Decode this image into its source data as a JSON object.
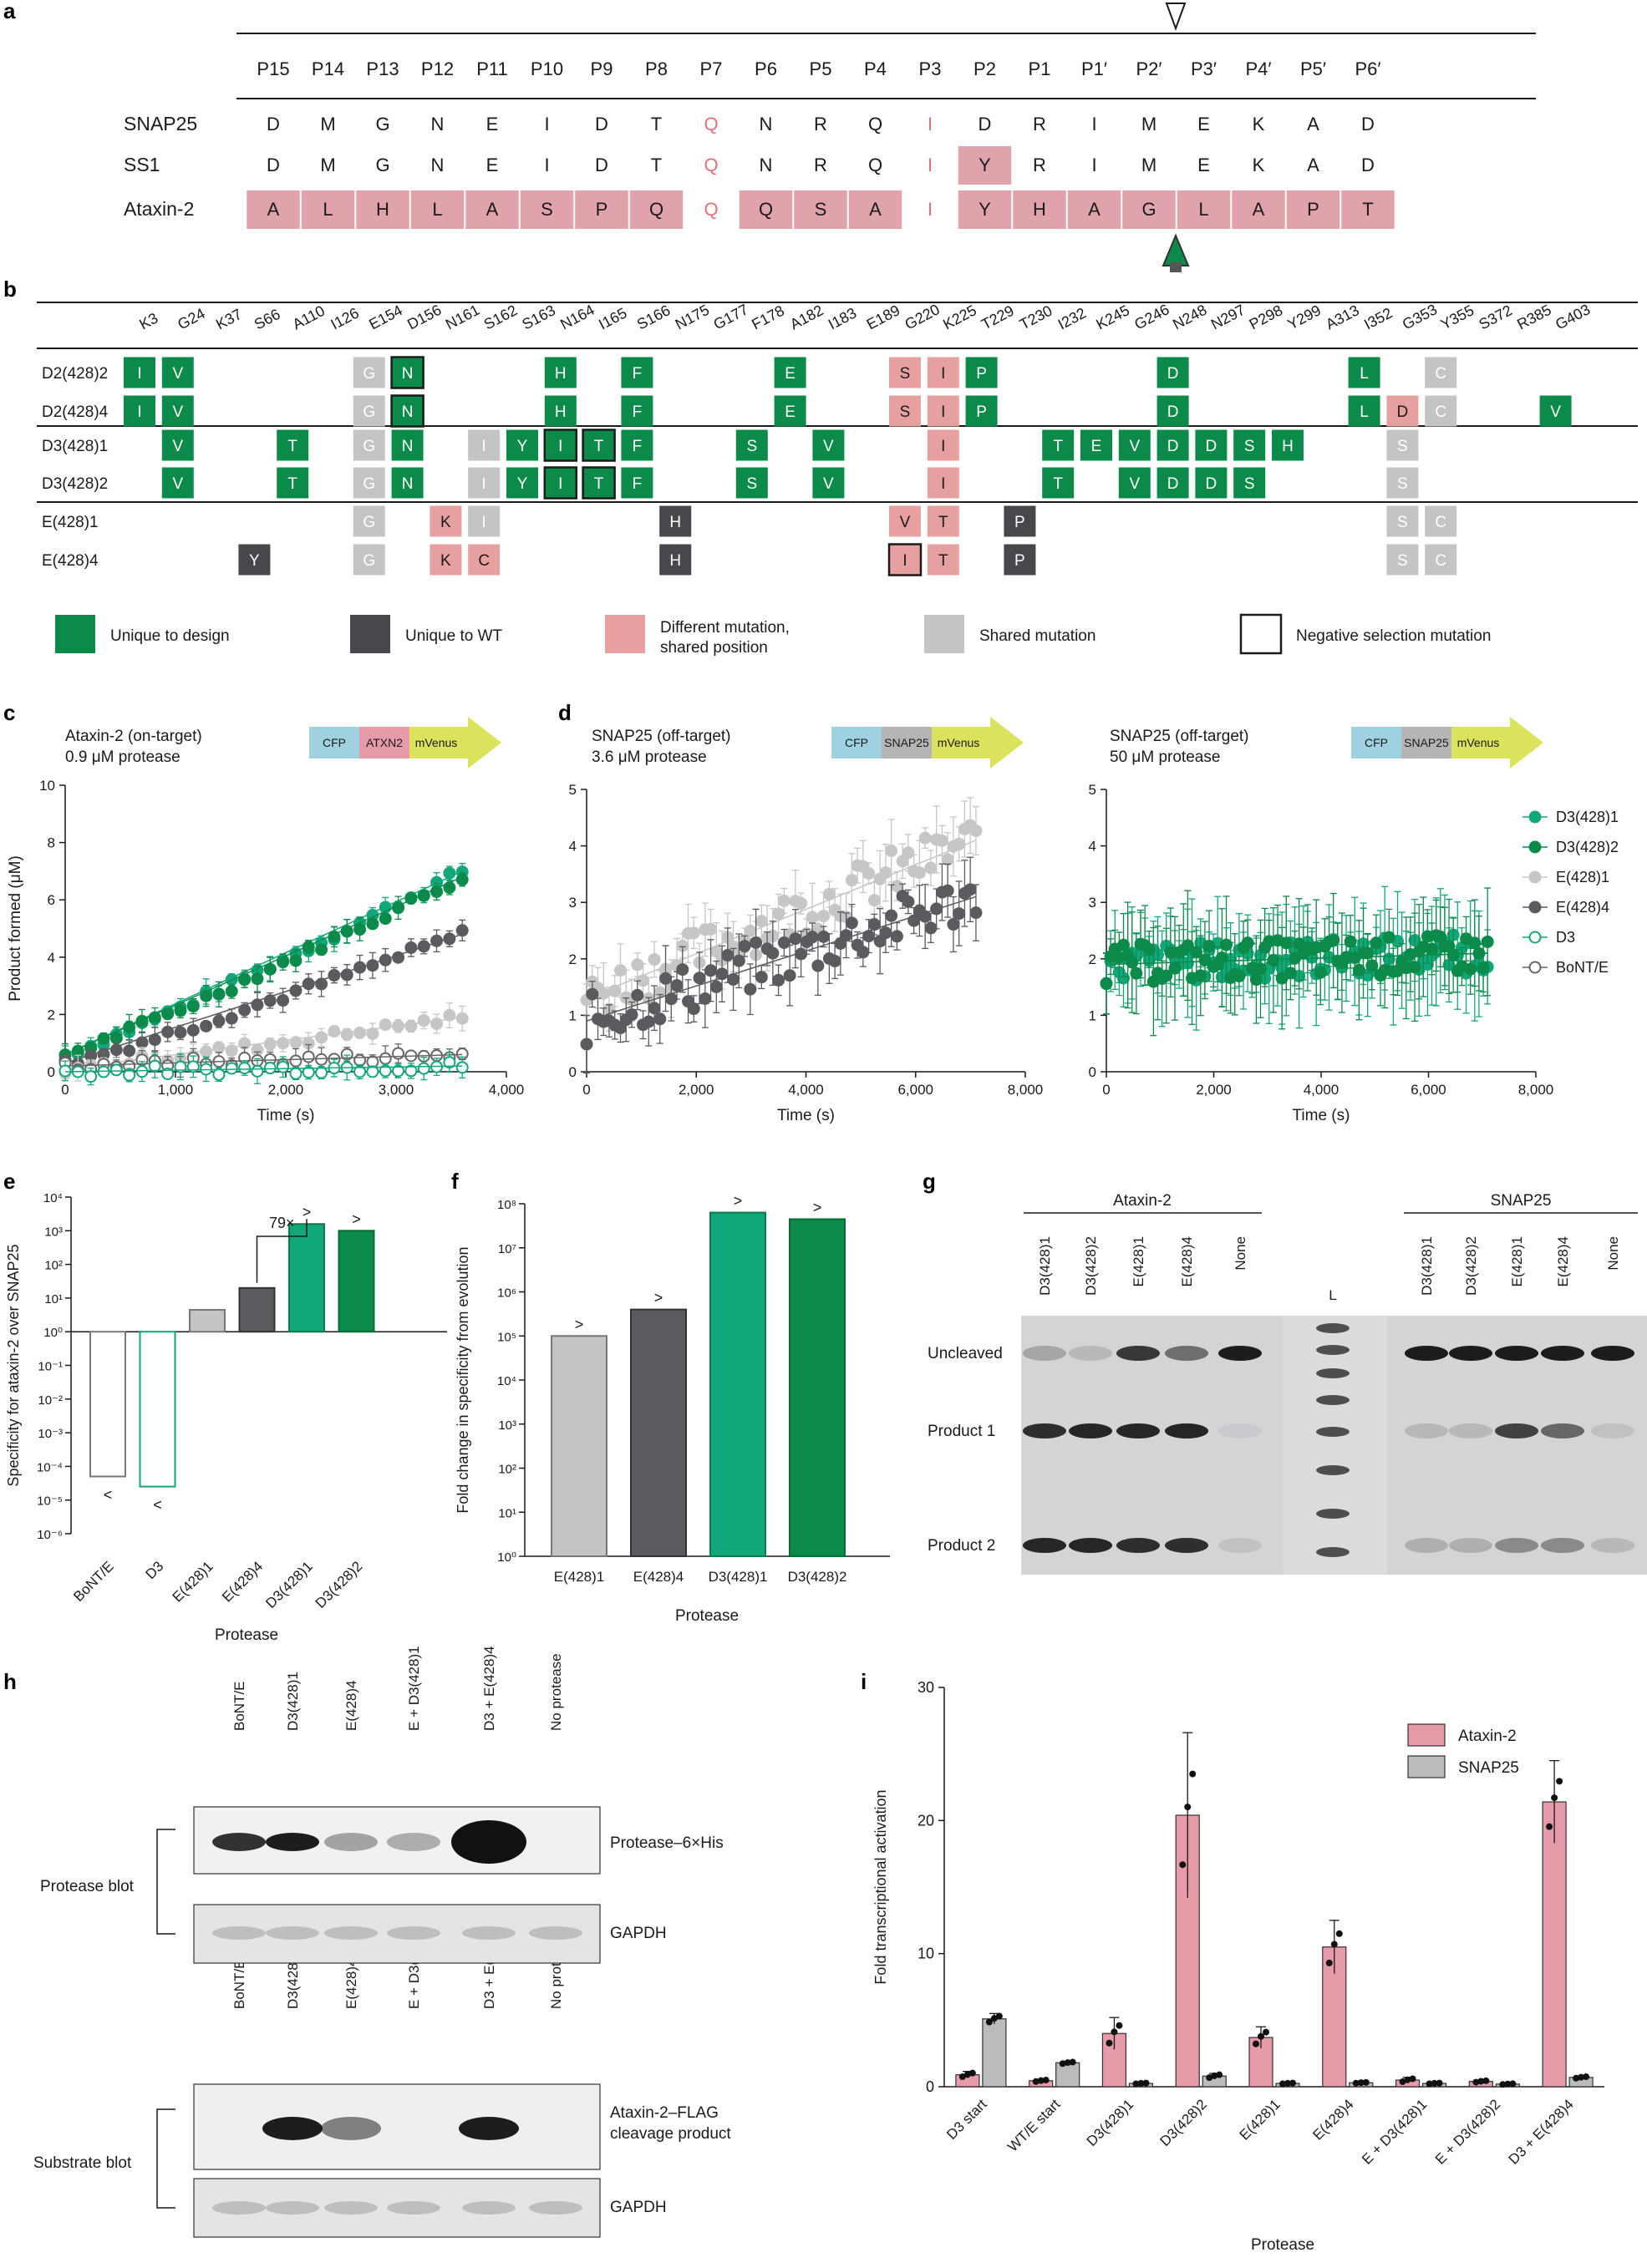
{
  "panels": {
    "a": "a",
    "b": "b",
    "c": "c",
    "d": "d",
    "e": "e",
    "f": "f",
    "g": "g",
    "h": "h",
    "i": "i"
  },
  "panel_a": {
    "positions": [
      "P15",
      "P14",
      "P13",
      "P12",
      "P11",
      "P10",
      "P9",
      "P8",
      "P7",
      "P6",
      "P5",
      "P4",
      "P3",
      "P2",
      "P1",
      "P1′",
      "P2′",
      "P3′",
      "P4′",
      "P5′",
      "P6′"
    ],
    "rows": [
      {
        "name": "SNAP25",
        "residues": [
          "D",
          "M",
          "G",
          "N",
          "E",
          "I",
          "D",
          "T",
          "Q",
          "N",
          "R",
          "Q",
          "I",
          "D",
          "R",
          "I",
          "M",
          "E",
          "K",
          "A",
          "D"
        ],
        "shaded": [
          0,
          0,
          0,
          0,
          0,
          0,
          0,
          0,
          0,
          0,
          0,
          0,
          0,
          0,
          0,
          0,
          0,
          0,
          0,
          0,
          0
        ]
      },
      {
        "name": "SS1",
        "residues": [
          "D",
          "M",
          "G",
          "N",
          "E",
          "I",
          "D",
          "T",
          "Q",
          "N",
          "R",
          "Q",
          "I",
          "Y",
          "R",
          "I",
          "M",
          "E",
          "K",
          "A",
          "D"
        ],
        "shaded": [
          0,
          0,
          0,
          0,
          0,
          0,
          0,
          0,
          0,
          0,
          0,
          0,
          0,
          1,
          0,
          0,
          0,
          0,
          0,
          0,
          0
        ]
      },
      {
        "name": "Ataxin-2",
        "residues": [
          "A",
          "L",
          "H",
          "L",
          "A",
          "S",
          "P",
          "Q",
          "Q",
          "Q",
          "S",
          "A",
          "I",
          "Y",
          "H",
          "A",
          "G",
          "L",
          "A",
          "P",
          "T"
        ],
        "shaded": [
          1,
          1,
          1,
          1,
          1,
          1,
          1,
          1,
          0,
          1,
          1,
          1,
          0,
          1,
          1,
          1,
          1,
          1,
          1,
          1,
          1
        ]
      }
    ],
    "red_text_cols": [
      8,
      12
    ]
  },
  "panel_b": {
    "positions": [
      "K3",
      "G24",
      "K37",
      "S66",
      "A110",
      "I126",
      "E154",
      "D156",
      "N161",
      "S162",
      "S163",
      "N164",
      "I165",
      "S166",
      "N175",
      "G177",
      "F178",
      "A182",
      "I183",
      "E189",
      "G220",
      "K225",
      "T229",
      "T230",
      "I232",
      "K245",
      "G246",
      "N248",
      "N297",
      "P298",
      "Y299",
      "A313",
      "I352",
      "G353",
      "Y355",
      "S372",
      "R385",
      "G403"
    ],
    "rows": [
      {
        "name": "D2(428)2",
        "group": 0,
        "cells": [
          [
            0,
            "I",
            "g"
          ],
          [
            1,
            "V",
            "g"
          ],
          [
            6,
            "G",
            "s"
          ],
          [
            7,
            "N",
            "gb"
          ],
          [
            11,
            "H",
            "g"
          ],
          [
            13,
            "F",
            "g"
          ],
          [
            17,
            "E",
            "g"
          ],
          [
            20,
            "S",
            "p"
          ],
          [
            21,
            "I",
            "p"
          ],
          [
            22,
            "P",
            "g"
          ],
          [
            27,
            "D",
            "g"
          ],
          [
            32,
            "L",
            "g"
          ],
          [
            34,
            "C",
            "s"
          ]
        ]
      },
      {
        "name": "D2(428)4",
        "group": 0,
        "cells": [
          [
            0,
            "I",
            "g"
          ],
          [
            1,
            "V",
            "g"
          ],
          [
            6,
            "G",
            "s"
          ],
          [
            7,
            "N",
            "gb"
          ],
          [
            11,
            "H",
            "g"
          ],
          [
            13,
            "F",
            "g"
          ],
          [
            17,
            "E",
            "g"
          ],
          [
            20,
            "S",
            "p"
          ],
          [
            21,
            "I",
            "p"
          ],
          [
            22,
            "P",
            "g"
          ],
          [
            27,
            "D",
            "g"
          ],
          [
            32,
            "L",
            "g"
          ],
          [
            33,
            "D",
            "p"
          ],
          [
            34,
            "C",
            "s"
          ],
          [
            37,
            "V",
            "g"
          ]
        ]
      },
      {
        "name": "D3(428)1",
        "group": 1,
        "cells": [
          [
            1,
            "V",
            "g"
          ],
          [
            4,
            "T",
            "g"
          ],
          [
            6,
            "G",
            "s"
          ],
          [
            7,
            "N",
            "g"
          ],
          [
            9,
            "I",
            "s"
          ],
          [
            10,
            "Y",
            "g"
          ],
          [
            11,
            "I",
            "gb"
          ],
          [
            12,
            "T",
            "gb"
          ],
          [
            13,
            "F",
            "g"
          ],
          [
            16,
            "S",
            "g"
          ],
          [
            18,
            "V",
            "g"
          ],
          [
            21,
            "I",
            "p"
          ],
          [
            24,
            "T",
            "g"
          ],
          [
            25,
            "E",
            "g"
          ],
          [
            26,
            "V",
            "g"
          ],
          [
            27,
            "D",
            "g"
          ],
          [
            28,
            "D",
            "g"
          ],
          [
            29,
            "S",
            "g"
          ],
          [
            30,
            "H",
            "g"
          ],
          [
            33,
            "S",
            "s"
          ]
        ]
      },
      {
        "name": "D3(428)2",
        "group": 1,
        "cells": [
          [
            1,
            "V",
            "g"
          ],
          [
            4,
            "T",
            "g"
          ],
          [
            6,
            "G",
            "s"
          ],
          [
            7,
            "N",
            "g"
          ],
          [
            9,
            "I",
            "s"
          ],
          [
            10,
            "Y",
            "g"
          ],
          [
            11,
            "I",
            "gb"
          ],
          [
            12,
            "T",
            "gb"
          ],
          [
            13,
            "F",
            "g"
          ],
          [
            16,
            "S",
            "g"
          ],
          [
            18,
            "V",
            "g"
          ],
          [
            21,
            "I",
            "p"
          ],
          [
            24,
            "T",
            "g"
          ],
          [
            26,
            "V",
            "g"
          ],
          [
            27,
            "D",
            "g"
          ],
          [
            28,
            "D",
            "g"
          ],
          [
            29,
            "S",
            "g"
          ],
          [
            33,
            "S",
            "s"
          ]
        ]
      },
      {
        "name": "E(428)1",
        "group": 2,
        "cells": [
          [
            6,
            "G",
            "s"
          ],
          [
            8,
            "K",
            "p"
          ],
          [
            9,
            "I",
            "s"
          ],
          [
            14,
            "H",
            "d"
          ],
          [
            20,
            "V",
            "p"
          ],
          [
            21,
            "T",
            "p"
          ],
          [
            23,
            "P",
            "d"
          ],
          [
            33,
            "S",
            "s"
          ],
          [
            34,
            "C",
            "s"
          ]
        ]
      },
      {
        "name": "E(428)4",
        "group": 2,
        "cells": [
          [
            3,
            "Y",
            "d"
          ],
          [
            6,
            "G",
            "s"
          ],
          [
            8,
            "K",
            "p"
          ],
          [
            9,
            "C",
            "p"
          ],
          [
            14,
            "H",
            "d"
          ],
          [
            20,
            "I",
            "pb"
          ],
          [
            21,
            "T",
            "p"
          ],
          [
            23,
            "P",
            "d"
          ],
          [
            33,
            "S",
            "s"
          ],
          [
            34,
            "C",
            "s"
          ]
        ]
      }
    ],
    "legend": [
      {
        "key": "g",
        "label": "Unique to design"
      },
      {
        "key": "d",
        "label": "Unique to WT"
      },
      {
        "key": "p",
        "label": "Different mutation,",
        "label2": "shared position"
      },
      {
        "key": "s",
        "label": "Shared mutation"
      },
      {
        "key": "b",
        "label": "Negative selection mutation"
      }
    ]
  },
  "colors": {
    "green": "#0c8a4a",
    "green_light": "#12a77a",
    "dark": "#47484b",
    "pink": "#e6a0a0",
    "gray": "#c3c4c4",
    "shade": "#e0a3ab",
    "cfp": "#9fd2e0",
    "atxn2": "#e79aa8",
    "snap": "#b5b5b5",
    "mvenus": "#dbe25b",
    "lightgray_series": "#c6c6c6",
    "midgray": "#5a5b5e"
  },
  "panel_c": {
    "subtitle1": "Ataxin-2 (on-target)",
    "subtitle2": "0.9 μM protease",
    "construct": [
      "CFP",
      "ATXN2",
      "mVenus"
    ],
    "ylabel": "Product formed (μM)",
    "xlabel": "Time (s)",
    "yticks": [
      "0",
      "2",
      "4",
      "6",
      "8",
      "10"
    ],
    "xticks": [
      "0",
      "1,000",
      "2,000",
      "3,000",
      "4,000"
    ]
  },
  "panel_d": {
    "left": {
      "subtitle1": "SNAP25 (off-target)",
      "subtitle2": "3.6 μM protease",
      "construct": [
        "CFP",
        "SNAP25",
        "mVenus"
      ]
    },
    "right": {
      "subtitle1": "SNAP25 (off-target)",
      "subtitle2": " 50 μM protease",
      "construct": [
        "CFP",
        "SNAP25",
        "mVenus"
      ]
    },
    "xlabel": "Time (s)",
    "yticks": [
      "0",
      "1",
      "2",
      "3",
      "4",
      "5"
    ],
    "xticks": [
      "0",
      "2,000",
      "4,000",
      "6,000",
      "8,000"
    ],
    "legend": [
      {
        "name": "D3(428)1",
        "style": "fill",
        "color": "#12a77a"
      },
      {
        "name": "D3(428)2",
        "style": "fill",
        "color": "#0c8a4a"
      },
      {
        "name": "E(428)1",
        "style": "fill",
        "color": "#c6c6c6"
      },
      {
        "name": "E(428)4",
        "style": "fill",
        "color": "#5a5b5e"
      },
      {
        "name": "D3",
        "style": "open",
        "color": "#12a77a"
      },
      {
        "name": "BoNT/E",
        "style": "open",
        "color": "#666666"
      }
    ]
  },
  "chart_data": [
    {
      "panel": "c",
      "type": "scatter",
      "title": "Ataxin-2 (on-target)",
      "xlabel": "Time (s)",
      "ylabel": "Product formed (μM)",
      "xlim": [
        0,
        4000
      ],
      "ylim": [
        0,
        10
      ],
      "series": [
        {
          "name": "D3(428)1",
          "x": [
            0,
            3600
          ],
          "y": [
            0.6,
            7.0
          ]
        },
        {
          "name": "D3(428)2",
          "x": [
            0,
            3600
          ],
          "y": [
            0.6,
            6.8
          ]
        },
        {
          "name": "E(428)4",
          "x": [
            0,
            3600
          ],
          "y": [
            0.3,
            4.8
          ]
        },
        {
          "name": "E(428)1",
          "x": [
            0,
            3600
          ],
          "y": [
            0.1,
            1.9
          ]
        },
        {
          "name": "BoNT/E",
          "x": [
            0,
            3600
          ],
          "y": [
            0.2,
            0.6
          ]
        },
        {
          "name": "D3",
          "x": [
            0,
            3600
          ],
          "y": [
            0.0,
            0.2
          ]
        }
      ]
    },
    {
      "panel": "d-left",
      "type": "scatter",
      "title": "SNAP25 (off-target)",
      "xlabel": "Time (s)",
      "xlim": [
        0,
        8000
      ],
      "ylim": [
        0,
        5
      ],
      "series": [
        {
          "name": "E(428)1",
          "x": [
            0,
            7100
          ],
          "y": [
            1.3,
            4.1
          ]
        },
        {
          "name": "E(428)4",
          "x": [
            0,
            7100
          ],
          "y": [
            0.9,
            3.1
          ]
        }
      ]
    },
    {
      "panel": "d-right",
      "type": "scatter",
      "title": "SNAP25 (off-target)",
      "xlabel": "Time (s)",
      "xlim": [
        0,
        8000
      ],
      "ylim": [
        0,
        5
      ],
      "series": [
        {
          "name": "D3(428)1",
          "x": [
            0,
            7100
          ],
          "y": [
            1.9,
            2.1
          ]
        },
        {
          "name": "D3(428)2",
          "x": [
            0,
            7100
          ],
          "y": [
            1.9,
            2.1
          ]
        }
      ]
    },
    {
      "panel": "e",
      "type": "bar",
      "ylabel": "Specificity for ataxin-2 over SNAP25",
      "xlabel": "Protease",
      "log": true,
      "ylim": [
        -6,
        4
      ],
      "categories": [
        "BoNT/E",
        "D3",
        "E(428)1",
        "E(428)4",
        "D3(428)1",
        "D3(428)2"
      ],
      "values_log10": [
        -4.3,
        -4.6,
        0.65,
        1.3,
        3.2,
        3.0
      ],
      "annotations": [
        "<",
        "<",
        "",
        "",
        ">",
        ">"
      ],
      "bracket_label": "79×"
    },
    {
      "panel": "f",
      "type": "bar",
      "ylabel": "Fold change in specificity from evolution",
      "xlabel": "Protease",
      "log": true,
      "ylim": [
        0,
        8
      ],
      "categories": [
        "E(428)1",
        "E(428)4",
        "D3(428)1",
        "D3(428)2"
      ],
      "values_log10": [
        5.0,
        5.6,
        7.8,
        7.65
      ],
      "annotations": [
        ">",
        ">",
        ">",
        ">"
      ]
    },
    {
      "panel": "i",
      "type": "bar",
      "ylabel": "Fold transcriptional activation",
      "xlabel": "Protease",
      "ylim": [
        0,
        30
      ],
      "categories": [
        "D3 start",
        "WT/E start",
        "D3(428)1",
        "D3(428)2",
        "E(428)1",
        "E(428)4",
        "E + D3(428)1",
        "E + D3(428)2",
        "D3 + E(428)4"
      ],
      "series": [
        {
          "name": "Ataxin-2",
          "values": [
            0.9,
            0.45,
            4.0,
            20.4,
            3.7,
            10.5,
            0.5,
            0.4,
            21.4
          ],
          "err": [
            0.25,
            0.1,
            1.2,
            6.2,
            0.8,
            2.0,
            0.2,
            0.1,
            3.1
          ]
        },
        {
          "name": "SNAP25",
          "values": [
            5.1,
            1.8,
            0.25,
            0.8,
            0.25,
            0.3,
            0.25,
            0.2,
            0.7
          ],
          "err": [
            0.4,
            0.1,
            0.05,
            0.2,
            0.05,
            0.05,
            0.05,
            0.05,
            0.1
          ]
        }
      ],
      "yticks": [
        "0",
        "10",
        "20",
        "30"
      ]
    }
  ],
  "panel_e": {
    "ylabel": "Specificity for ataxin-2 over SNAP25",
    "xlabel": "Protease",
    "yticks": [
      "10⁴",
      "10³",
      "10²",
      "10¹",
      "10⁰",
      "10⁻¹",
      "10⁻²",
      "10⁻³",
      "10⁻⁴",
      "10⁻⁵",
      "10⁻⁶"
    ],
    "cats": [
      "BoNT/E",
      "D3",
      "E(428)1",
      "E(428)4",
      "D3(428)1",
      "D3(428)2"
    ],
    "bracket": "79×"
  },
  "panel_f": {
    "ylabel": "Fold change in specificity from evolution",
    "xlabel": "Protease",
    "yticks": [
      "10⁸",
      "10⁷",
      "10⁶",
      "10⁵",
      "10⁴",
      "10³",
      "10²",
      "10¹",
      "10⁰"
    ],
    "cats": [
      "E(428)1",
      "E(428)4",
      "D3(428)1",
      "D3(428)2"
    ]
  },
  "panel_g": {
    "left_label": "Ataxin-2",
    "right_label": "SNAP25",
    "lanes_left": [
      "D3(428)1",
      "D3(428)2",
      "E(428)1",
      "E(428)4",
      "None"
    ],
    "ladder": "L",
    "lanes_right": [
      "D3(428)1",
      "D3(428)2",
      "E(428)1",
      "E(428)4",
      "None"
    ],
    "bands": [
      "Uncleaved",
      "Product 1",
      "Product 2"
    ]
  },
  "panel_h": {
    "lanes": [
      "BoNT/E",
      "D3(428)1",
      "E(428)4",
      "E + D3(428)1",
      "D3 + E(428)4",
      "No protease"
    ],
    "protease_blot": "Protease blot",
    "protease_label": "Protease–6×His",
    "gapdh": "GAPDH",
    "substrate_blot": "Substrate blot",
    "substrate_label1": "Ataxin-2–FLAG",
    "substrate_label2": "cleavage product"
  },
  "panel_i": {
    "ylabel": "Fold transcriptional activation",
    "xlabel": "Protease",
    "legend": [
      {
        "name": "Ataxin-2",
        "color": "#e79aa8"
      },
      {
        "name": "SNAP25",
        "color": "#b9bbbc"
      }
    ]
  }
}
